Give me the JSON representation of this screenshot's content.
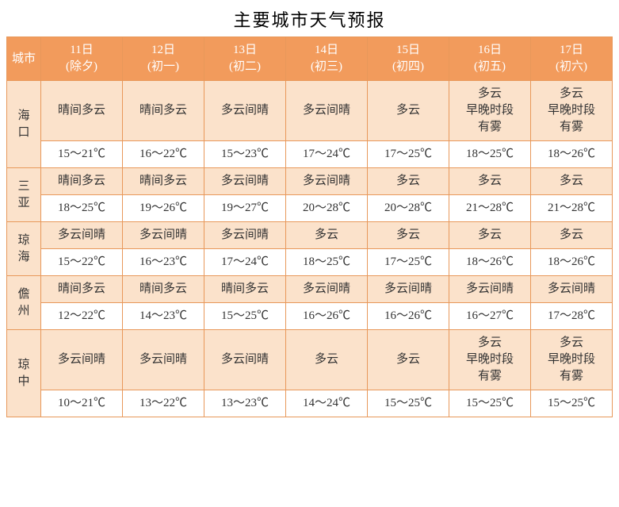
{
  "title": "主要城市天气预报",
  "colors": {
    "header_bg": "#f29b5c",
    "header_fg": "#ffffff",
    "shade_bg": "#fbe2cb",
    "border": "#e8985a",
    "temp_bg": "#ffffff"
  },
  "header": {
    "city_label": "城市",
    "days": [
      {
        "date": "11日",
        "lunar": "(除夕)"
      },
      {
        "date": "12日",
        "lunar": "(初一)"
      },
      {
        "date": "13日",
        "lunar": "(初二)"
      },
      {
        "date": "14日",
        "lunar": "(初三)"
      },
      {
        "date": "15日",
        "lunar": "(初四)"
      },
      {
        "date": "16日",
        "lunar": "(初五)"
      },
      {
        "date": "17日",
        "lunar": "(初六)"
      }
    ]
  },
  "cities": [
    {
      "name": "海口",
      "cond": [
        "晴间多云",
        "晴间多云",
        "多云间晴",
        "多云间晴",
        "多云",
        "多云\n早晚时段\n有雾",
        "多云\n早晚时段\n有雾"
      ],
      "temp": [
        "15～21℃",
        "16～22℃",
        "15～23℃",
        "17～24℃",
        "17～25℃",
        "18～25℃",
        "18～26℃"
      ]
    },
    {
      "name": "三亚",
      "cond": [
        "晴间多云",
        "晴间多云",
        "多云间晴",
        "多云间晴",
        "多云",
        "多云",
        "多云"
      ],
      "temp": [
        "18～25℃",
        "19～26℃",
        "19～27℃",
        "20～28℃",
        "20～28℃",
        "21～28℃",
        "21～28℃"
      ]
    },
    {
      "name": "琼海",
      "cond": [
        "多云间晴",
        "多云间晴",
        "多云间晴",
        "多云",
        "多云",
        "多云",
        "多云"
      ],
      "temp": [
        "15～22℃",
        "16～23℃",
        "17～24℃",
        "18～25℃",
        "17～25℃",
        "18～26℃",
        "18～26℃"
      ]
    },
    {
      "name": "儋州",
      "cond": [
        "晴间多云",
        "晴间多云",
        "晴间多云",
        "多云间晴",
        "多云间晴",
        "多云间晴",
        "多云间晴"
      ],
      "temp": [
        "12～22℃",
        "14～23℃",
        "15～25℃",
        "16～26℃",
        "16～26℃",
        "16～27℃",
        "17～28℃"
      ]
    },
    {
      "name": "琼中",
      "cond": [
        "多云间晴",
        "多云间晴",
        "多云间晴",
        "多云",
        "多云",
        "多云\n早晚时段\n有雾",
        "多云\n早晚时段\n有雾"
      ],
      "temp": [
        "10～21℃",
        "13～22℃",
        "13～23℃",
        "14～24℃",
        "15～25℃",
        "15～25℃",
        "15～25℃"
      ]
    }
  ]
}
